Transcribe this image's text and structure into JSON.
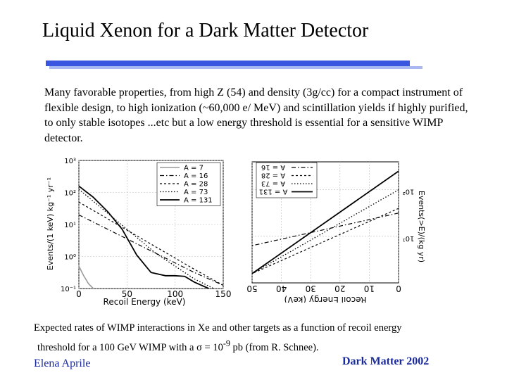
{
  "slide": {
    "title": "Liquid Xenon for a Dark Matter Detector",
    "body": "Many favorable properties, from high Z (54) and density (3g/cc) for a compact instrument of flexible design, to high ionization (~60,000 e/ MeV) and scintillation yields if highly purified, to only stable isotopes ...etc but a low energy threshold is essential for a sensitive WIMP detector.",
    "caption_line1": "Expected rates of WIMP interactions in Xe and other targets as a function of recoil energy",
    "caption_line2_prefix": "threshold for a 100 GeV WIMP with a ",
    "caption_sigma": "σ",
    "caption_eq": " = 10",
    "caption_exp": "-9",
    "caption_line2_suffix": " pb (from R. Schnee).",
    "author": "Elena Aprile",
    "conference": "Dark Matter 2002"
  },
  "colors": {
    "accent_bar": "#3a55e0",
    "accent_bar_light": "#a9b8f2",
    "footer_text": "#1a2a9a"
  },
  "chart_data": [
    {
      "type": "line",
      "title": "",
      "xlabel": "Recoil Energy (keV)",
      "ylabel": "Events/(1 keV) kg⁻¹ yr⁻¹",
      "xlim": [
        0,
        150
      ],
      "ylim_log10": [
        -1,
        3
      ],
      "x_ticks": [
        "0",
        "50",
        "100",
        "150"
      ],
      "y_ticks": [
        "10⁻¹",
        "10⁰",
        "10¹",
        "10²",
        "10³"
      ],
      "grid": true,
      "legend": "top-right",
      "series": [
        {
          "name": "A = 7",
          "x": [
            0,
            5,
            10,
            15
          ],
          "log10_y": [
            -0.3,
            -0.6,
            -0.85,
            -1.0
          ]
        },
        {
          "name": "A = 16",
          "x": [
            0,
            20,
            40,
            60,
            80,
            100,
            120,
            150
          ],
          "log10_y": [
            1.3,
            1.0,
            0.7,
            0.4,
            0.1,
            -0.2,
            -0.5,
            -0.9
          ]
        },
        {
          "name": "A = 28",
          "x": [
            0,
            20,
            40,
            60,
            80,
            100,
            120,
            150
          ],
          "log10_y": [
            1.7,
            1.35,
            1.0,
            0.65,
            0.3,
            -0.05,
            -0.4,
            -0.9
          ]
        },
        {
          "name": "A = 73",
          "x": [
            0,
            20,
            40,
            60,
            80,
            100,
            120,
            140
          ],
          "log10_y": [
            2.1,
            1.6,
            1.1,
            0.6,
            0.1,
            -0.3,
            -0.7,
            -1.0
          ]
        },
        {
          "name": "A = 131",
          "x": [
            0,
            15,
            30,
            45,
            60,
            75,
            90,
            100,
            110,
            120,
            135
          ],
          "log10_y": [
            2.2,
            1.85,
            1.4,
            0.85,
            0.05,
            -0.5,
            -0.6,
            -0.6,
            -0.62,
            -0.8,
            -1.0
          ]
        }
      ]
    },
    {
      "type": "line",
      "orientation": "mirrored",
      "title": "",
      "xlabel": "Recoil Energy (keV)",
      "ylabel": "Events(>E)/(kg yr)",
      "xlim": [
        0,
        50
      ],
      "x_ticks": [
        "50",
        "40",
        "30",
        "20",
        "10",
        "0"
      ],
      "y_ticks": [
        "10¹",
        "10²"
      ],
      "grid": true,
      "legend": "top-left",
      "series": [
        {
          "name": "A = 131",
          "x": [
            0,
            50
          ],
          "log10_y": [
            2.4,
            0.2
          ]
        },
        {
          "name": "A = 73",
          "x": [
            0,
            50
          ],
          "log10_y": [
            2.0,
            0.2
          ]
        },
        {
          "name": "A = 28",
          "x": [
            0,
            50
          ],
          "log10_y": [
            1.6,
            0.2
          ]
        },
        {
          "name": "A = 16",
          "x": [
            0,
            50
          ],
          "log10_y": [
            1.5,
            0.8
          ]
        }
      ]
    }
  ]
}
